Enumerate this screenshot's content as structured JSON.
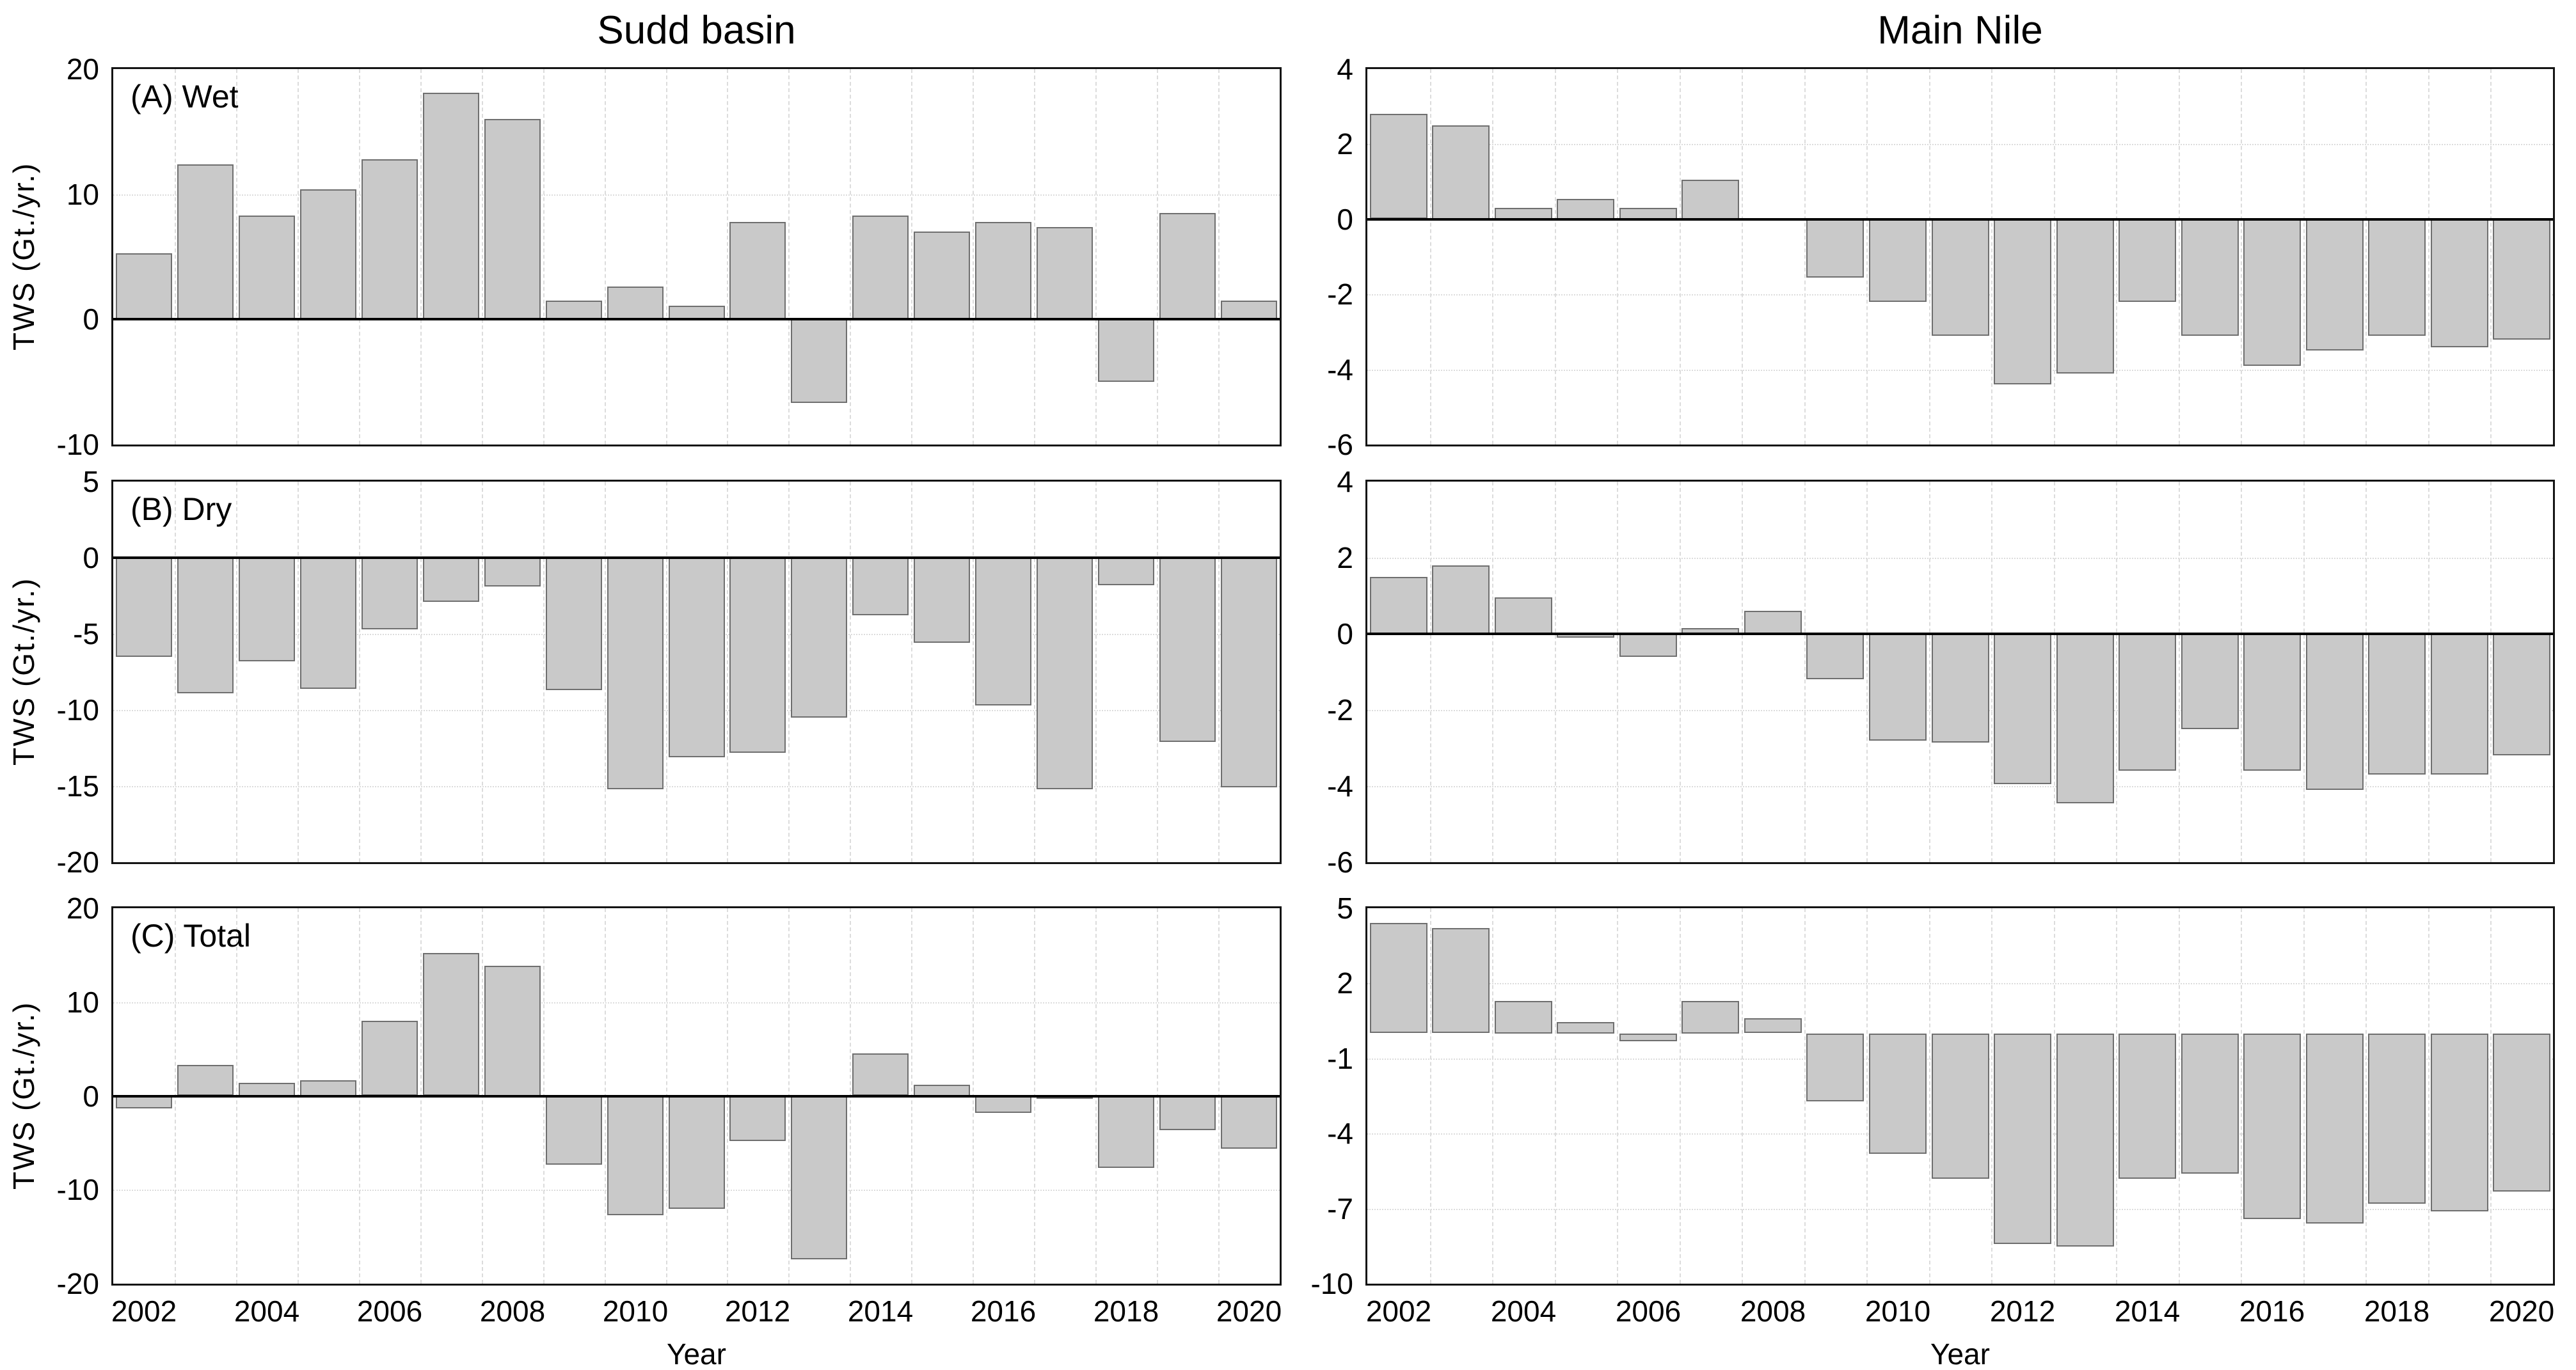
{
  "figure": {
    "column_titles": [
      "Sudd basin",
      "Main Nile"
    ],
    "ylabel": "TWS (Gt./yr.)",
    "xlabel": "Year",
    "colors": {
      "bar_fill": "#c9c9c9",
      "bar_border": "#6f6f6f",
      "grid": "#dcdcdc",
      "axis": "#141414"
    }
  },
  "chart_data": [
    {
      "type": "bar",
      "column": "Sudd basin",
      "panel_label": "(A) Wet",
      "x": [
        2002,
        2003,
        2004,
        2005,
        2006,
        2007,
        2008,
        2009,
        2010,
        2011,
        2012,
        2013,
        2014,
        2015,
        2016,
        2017,
        2018,
        2019,
        2020
      ],
      "values": [
        5.3,
        12.4,
        8.3,
        10.4,
        12.8,
        18.1,
        16.0,
        1.5,
        2.6,
        1.1,
        7.8,
        -6.7,
        8.3,
        7.0,
        7.8,
        7.4,
        -5.0,
        8.5,
        1.5
      ],
      "ylim": [
        -10,
        20
      ],
      "yticks": [
        20,
        10,
        0,
        -10
      ],
      "zero_line": true,
      "grid": true
    },
    {
      "type": "bar",
      "column": "Main Nile",
      "panel_label": "",
      "x": [
        2002,
        2003,
        2004,
        2005,
        2006,
        2007,
        2008,
        2009,
        2010,
        2011,
        2012,
        2013,
        2014,
        2015,
        2016,
        2017,
        2018,
        2019,
        2020
      ],
      "values": [
        2.8,
        2.5,
        0.3,
        0.55,
        0.3,
        1.05,
        0.0,
        -1.55,
        -2.2,
        -3.1,
        -4.4,
        -4.1,
        -2.2,
        -3.1,
        -3.9,
        -3.5,
        -3.1,
        -3.4,
        -3.2
      ],
      "ylim": [
        -6,
        4
      ],
      "yticks": [
        4,
        2,
        0,
        -2,
        -4,
        -6
      ],
      "zero_line": true,
      "grid": true
    },
    {
      "type": "bar",
      "column": "Sudd basin",
      "panel_label": "(B) Dry",
      "x": [
        2002,
        2003,
        2004,
        2005,
        2006,
        2007,
        2008,
        2009,
        2010,
        2011,
        2012,
        2013,
        2014,
        2015,
        2016,
        2017,
        2018,
        2019,
        2020
      ],
      "values": [
        -6.5,
        -8.9,
        -6.8,
        -8.6,
        -4.7,
        -2.9,
        -1.9,
        -8.7,
        -15.2,
        -13.1,
        -12.8,
        -10.5,
        -3.8,
        -5.6,
        -9.7,
        -15.2,
        -1.8,
        -12.1,
        -15.1
      ],
      "ylim": [
        -20,
        5
      ],
      "yticks": [
        5,
        0,
        -5,
        -10,
        -15,
        -20
      ],
      "zero_line": true,
      "grid": true
    },
    {
      "type": "bar",
      "column": "Main Nile",
      "panel_label": "",
      "x": [
        2002,
        2003,
        2004,
        2005,
        2006,
        2007,
        2008,
        2009,
        2010,
        2011,
        2012,
        2013,
        2014,
        2015,
        2016,
        2017,
        2018,
        2019,
        2020
      ],
      "values": [
        1.5,
        1.8,
        0.95,
        -0.1,
        -0.6,
        0.15,
        0.6,
        -1.2,
        -2.8,
        -2.85,
        -3.95,
        -4.45,
        -3.6,
        -2.5,
        -3.6,
        -4.1,
        -3.7,
        -3.7,
        -3.2
      ],
      "ylim": [
        -6,
        4
      ],
      "yticks": [
        4,
        2,
        0,
        -2,
        -4,
        -6
      ],
      "zero_line": true,
      "grid": true
    },
    {
      "type": "bar",
      "column": "Sudd basin",
      "panel_label": "(C) Total",
      "x": [
        2002,
        2003,
        2004,
        2005,
        2006,
        2007,
        2008,
        2009,
        2010,
        2011,
        2012,
        2013,
        2014,
        2015,
        2016,
        2017,
        2018,
        2019,
        2020
      ],
      "values": [
        -1.3,
        3.3,
        1.4,
        1.7,
        8.0,
        15.2,
        13.9,
        -7.3,
        -12.7,
        -12.0,
        -4.8,
        -17.4,
        4.5,
        1.2,
        -1.8,
        -0.3,
        -7.6,
        -3.6,
        -5.6
      ],
      "ylim": [
        -20,
        20
      ],
      "yticks": [
        20,
        10,
        0,
        -10,
        -20
      ],
      "zero_line": true,
      "grid": true,
      "xticks": [
        2002,
        2004,
        2006,
        2008,
        2010,
        2012,
        2014,
        2016,
        2018,
        2020
      ],
      "xlabel": "Year"
    },
    {
      "type": "bar",
      "column": "Main Nile",
      "panel_label": "",
      "x": [
        2002,
        2003,
        2004,
        2005,
        2006,
        2007,
        2008,
        2009,
        2010,
        2011,
        2012,
        2013,
        2014,
        2015,
        2016,
        2017,
        2018,
        2019,
        2020
      ],
      "values": [
        4.4,
        4.2,
        1.3,
        0.45,
        -0.3,
        1.3,
        0.6,
        -2.7,
        -4.8,
        -5.8,
        -8.4,
        -8.5,
        -5.8,
        -5.6,
        -7.4,
        -7.6,
        -6.8,
        -7.1,
        -6.3
      ],
      "ylim": [
        -10,
        5
      ],
      "yticks": [
        5,
        2,
        -1,
        -4,
        -7,
        -10
      ],
      "zero_line": false,
      "grid": true,
      "xticks": [
        2002,
        2004,
        2006,
        2008,
        2010,
        2012,
        2014,
        2016,
        2018,
        2020
      ],
      "xlabel": "Year"
    }
  ]
}
